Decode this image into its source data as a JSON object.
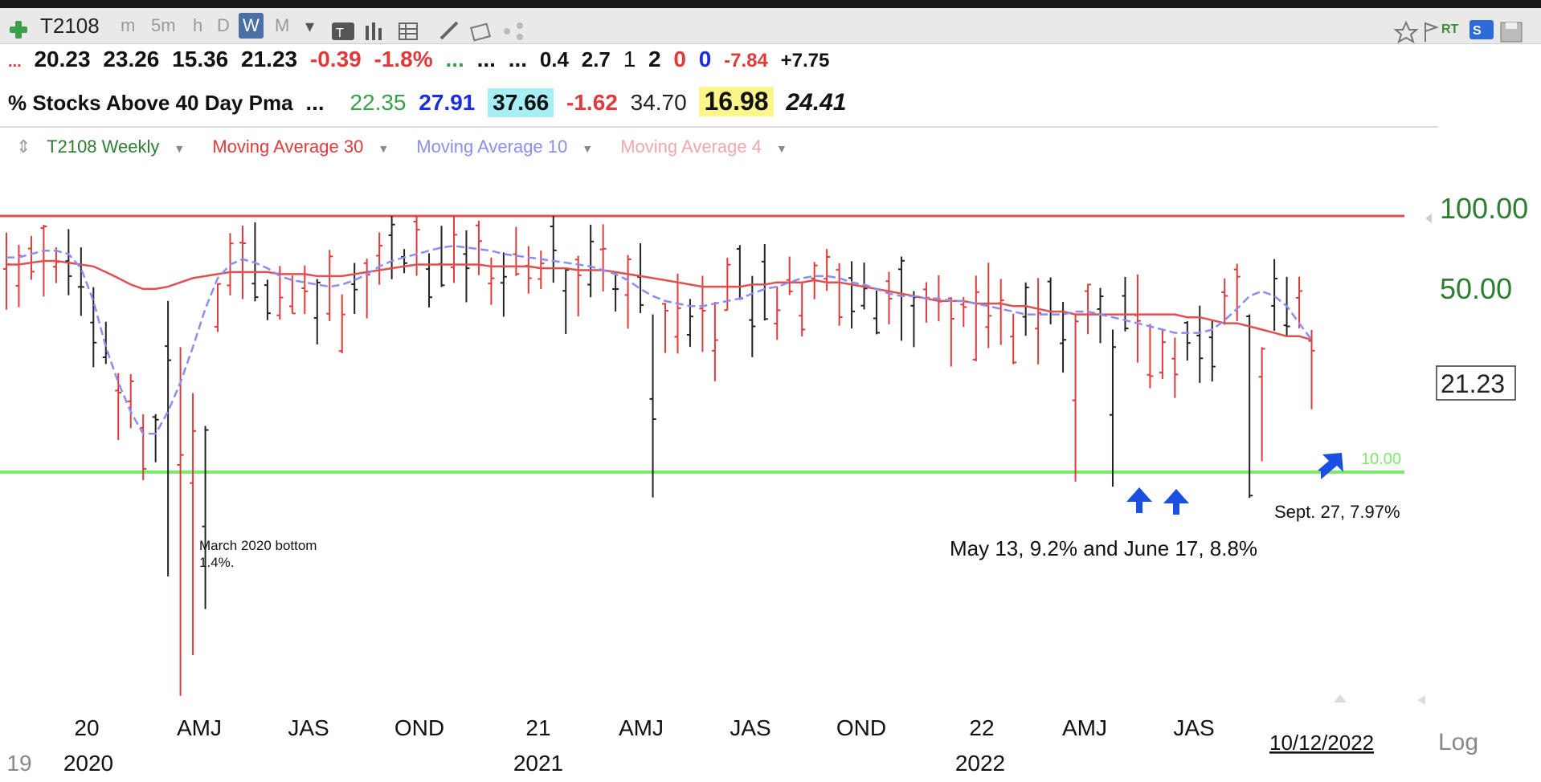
{
  "toolbar": {
    "symbol": "T2108",
    "timeframes": [
      "m",
      "5m",
      "h",
      "D",
      "W",
      "M"
    ],
    "active_timeframe": "W",
    "rt_label": "RT",
    "s_label": "S"
  },
  "quote_row1": {
    "lead": "...",
    "open": "20.23",
    "high": "23.26",
    "low": "15.36",
    "last": "21.23",
    "change": "-0.39",
    "change_pct": "-1.8%",
    "dots_green": "...",
    "dots1": "...",
    "dots2": "...",
    "v1": "0.4",
    "v2": "2.7",
    "v3": "1",
    "v4": "2",
    "v5": "0",
    "v6": "0",
    "v7": "-7.84",
    "v8": "+7.75"
  },
  "quote_row2": {
    "name": "% Stocks Above 40 Day Pma",
    "dots": "...",
    "f1": "22.35",
    "f2": "27.91",
    "f3": "37.66",
    "f4": "-1.62",
    "f5": "34.70",
    "f6": "16.98",
    "f7": "24.41"
  },
  "legend": {
    "series_name": "T2108 Weekly",
    "ma30": "Moving Average 30",
    "ma10": "Moving Average 10",
    "ma4": "Moving Average 4"
  },
  "colors": {
    "up_bar": "#222222",
    "down_bar": "#e03a3a",
    "ma30": "#e05050",
    "ma10": "#8a8ef0",
    "ma4": "#f0a8a8",
    "resistance": "#e05050",
    "support": "#7cea6a",
    "accent_green": "#2e7d32",
    "arrow_blue": "#1a4fe0"
  },
  "chart_data": {
    "type": "ohlc-bar",
    "symbol": "T2108",
    "interval": "Weekly",
    "y_scale": "log",
    "y_ticks": [
      "100.00",
      "50.00"
    ],
    "last_value_label": "21.23",
    "resistance_level": 95,
    "support_level": 10,
    "support_label": "10.00",
    "x_month_labels": [
      "20",
      "AMJ",
      "JAS",
      "OND",
      "21",
      "AMJ",
      "JAS",
      "OND",
      "22",
      "AMJ",
      "JAS"
    ],
    "x_year_labels": [
      "19",
      "2020",
      "2021",
      "2022"
    ],
    "date_box": "10/12/2022",
    "log_label": "Log",
    "annotations": {
      "march": "March 2020 bottom\n1.4%.",
      "may_june": "May 13, 9.2%  and June 17, 8.8%",
      "sept": "Sept. 27,  7.97%"
    },
    "ma30": [
      62,
      62,
      63,
      64,
      64,
      63,
      62,
      61,
      58,
      55,
      52,
      50,
      50,
      51,
      53,
      55,
      56,
      57,
      58,
      58,
      58,
      58,
      57,
      57,
      57,
      56,
      56,
      56,
      57,
      58,
      59,
      60,
      61,
      62,
      62,
      62,
      62,
      62,
      62,
      61,
      61,
      61,
      61,
      60,
      60,
      60,
      59,
      59,
      59,
      58,
      57,
      56,
      55,
      54,
      53,
      52,
      51,
      51,
      51,
      51,
      52,
      52,
      53,
      53,
      53,
      54,
      53,
      53,
      52,
      51,
      50,
      49,
      48,
      47,
      46,
      45,
      45,
      45,
      44,
      44,
      44,
      43,
      43,
      42,
      41,
      41,
      40,
      40,
      40,
      40,
      40,
      40,
      40,
      40,
      40,
      39,
      39,
      38,
      37,
      37,
      36,
      35,
      34,
      33,
      33,
      32
    ],
    "ma10": [
      66,
      66,
      68,
      70,
      70,
      68,
      60,
      45,
      30,
      22,
      17,
      14,
      14,
      17,
      22,
      30,
      42,
      55,
      62,
      65,
      63,
      60,
      56,
      54,
      53,
      52,
      51,
      52,
      54,
      57,
      61,
      64,
      66,
      68,
      70,
      72,
      73,
      72,
      71,
      70,
      68,
      67,
      66,
      65,
      64,
      63,
      62,
      61,
      59,
      57,
      54,
      50,
      47,
      45,
      44,
      43,
      43,
      44,
      45,
      46,
      48,
      50,
      51,
      53,
      55,
      56,
      56,
      55,
      53,
      52,
      50,
      48,
      47,
      47,
      46,
      46,
      45,
      45,
      44,
      43,
      42,
      41,
      40,
      40,
      40,
      40,
      41,
      41,
      40,
      39,
      38,
      37,
      36,
      35,
      34,
      34,
      34,
      35,
      38,
      42,
      47,
      49,
      47,
      43,
      37,
      32
    ]
  }
}
